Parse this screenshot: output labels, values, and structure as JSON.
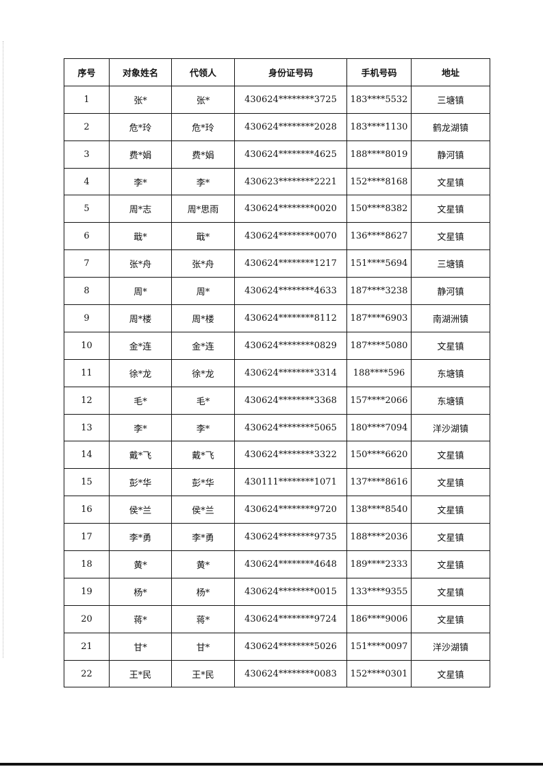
{
  "table": {
    "headers": [
      "序号",
      "对象姓名",
      "代领人",
      "身份证号码",
      "手机号码",
      "地址"
    ],
    "rows": [
      [
        "1",
        "张*",
        "张*",
        "430624********3725",
        "183****5532",
        "三塘镇"
      ],
      [
        "2",
        "危*玲",
        "危*玲",
        "430624********2028",
        "183****1130",
        "鹤龙湖镇"
      ],
      [
        "3",
        "费*娟",
        "费*娟",
        "430624********4625",
        "188****8019",
        "静河镇"
      ],
      [
        "4",
        "李*",
        "李*",
        "430623********2221",
        "152****8168",
        "文星镇"
      ],
      [
        "5",
        "周*志",
        "周*思雨",
        "430624********0020",
        "150****8382",
        "文星镇"
      ],
      [
        "6",
        "戢*",
        "戢*",
        "430624********0070",
        "136****8627",
        "文星镇"
      ],
      [
        "7",
        "张*舟",
        "张*舟",
        "430624********1217",
        "151****5694",
        "三塘镇"
      ],
      [
        "8",
        "周*",
        "周*",
        "430624********4633",
        "187****3238",
        "静河镇"
      ],
      [
        "9",
        "周*楼",
        "周*楼",
        "430624********8112",
        "187****6903",
        "南湖洲镇"
      ],
      [
        "10",
        "金*连",
        "金*连",
        "430624********0829",
        "187****5080",
        "文星镇"
      ],
      [
        "11",
        "徐*龙",
        "徐*龙",
        "430624********3314",
        "188****596",
        "东塘镇"
      ],
      [
        "12",
        "毛*",
        "毛*",
        "430624********3368",
        "157****2066",
        "东塘镇"
      ],
      [
        "13",
        "李*",
        "李*",
        "430624********5065",
        "180****7094",
        "洋沙湖镇"
      ],
      [
        "14",
        "戴*飞",
        "戴*飞",
        "430624********3322",
        "150****6620",
        "文星镇"
      ],
      [
        "15",
        "彭*华",
        "彭*华",
        "430111********1071",
        "137****8616",
        "文星镇"
      ],
      [
        "16",
        "侯*兰",
        "侯*兰",
        "430624********9720",
        "138****8540",
        "文星镇"
      ],
      [
        "17",
        "李*勇",
        "李*勇",
        "430624********9735",
        "188****2036",
        "文星镇"
      ],
      [
        "18",
        "黄*",
        "黄*",
        "430624********4648",
        "189****2333",
        "文星镇"
      ],
      [
        "19",
        "杨*",
        "杨*",
        "430624********0015",
        "133****9355",
        "文星镇"
      ],
      [
        "20",
        "蒋*",
        "蒋*",
        "430624********9724",
        "186****9006",
        "文星镇"
      ],
      [
        "21",
        "甘*",
        "甘*",
        "430624********5026",
        "151****0097",
        "洋沙湖镇"
      ],
      [
        "22",
        "王*民",
        "王*民",
        "430624********0083",
        "152****0301",
        "文星镇"
      ]
    ]
  }
}
